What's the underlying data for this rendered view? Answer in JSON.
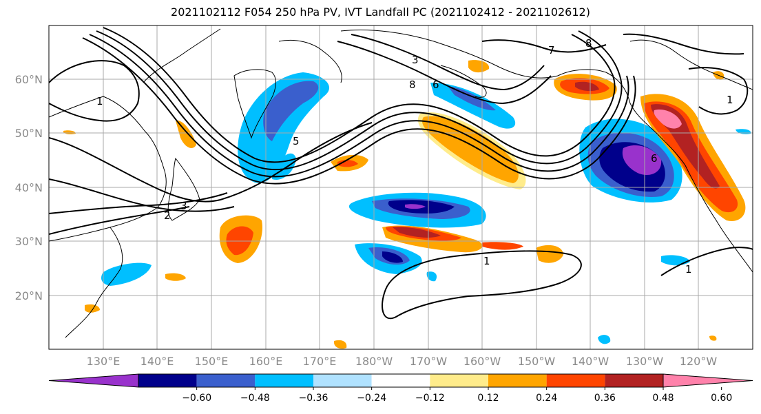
{
  "title": "2021102112 F054 250 hPa PV, IVT Landfall PC (2021102412 - 2021102612)",
  "lat_labels": [
    "60°N",
    "50°N",
    "40°N",
    "30°N",
    "20°N"
  ],
  "lon_labels": [
    "130°E",
    "140°E",
    "150°E",
    "160°E",
    "170°E",
    "180°W",
    "170°W",
    "160°W",
    "150°W",
    "140°W",
    "130°W",
    "120°W"
  ],
  "contour_labels": [
    "1",
    "1",
    "1",
    "1",
    "2",
    "3",
    "5",
    "6",
    "6",
    "7",
    "8",
    "8",
    "3"
  ],
  "colorbar": {
    "ticks": [
      "−0.60",
      "−0.48",
      "−0.36",
      "−0.24",
      "−0.12",
      "0.12",
      "0.24",
      "0.36",
      "0.48",
      "0.60"
    ],
    "colors": [
      "#9932cc",
      "#00008b",
      "#3a5fcd",
      "#00bfff",
      "#b0e2ff",
      "#ffffff",
      "#ffec8b",
      "#ffa500",
      "#ff4500",
      "#b22222",
      "#ff82ab"
    ]
  }
}
